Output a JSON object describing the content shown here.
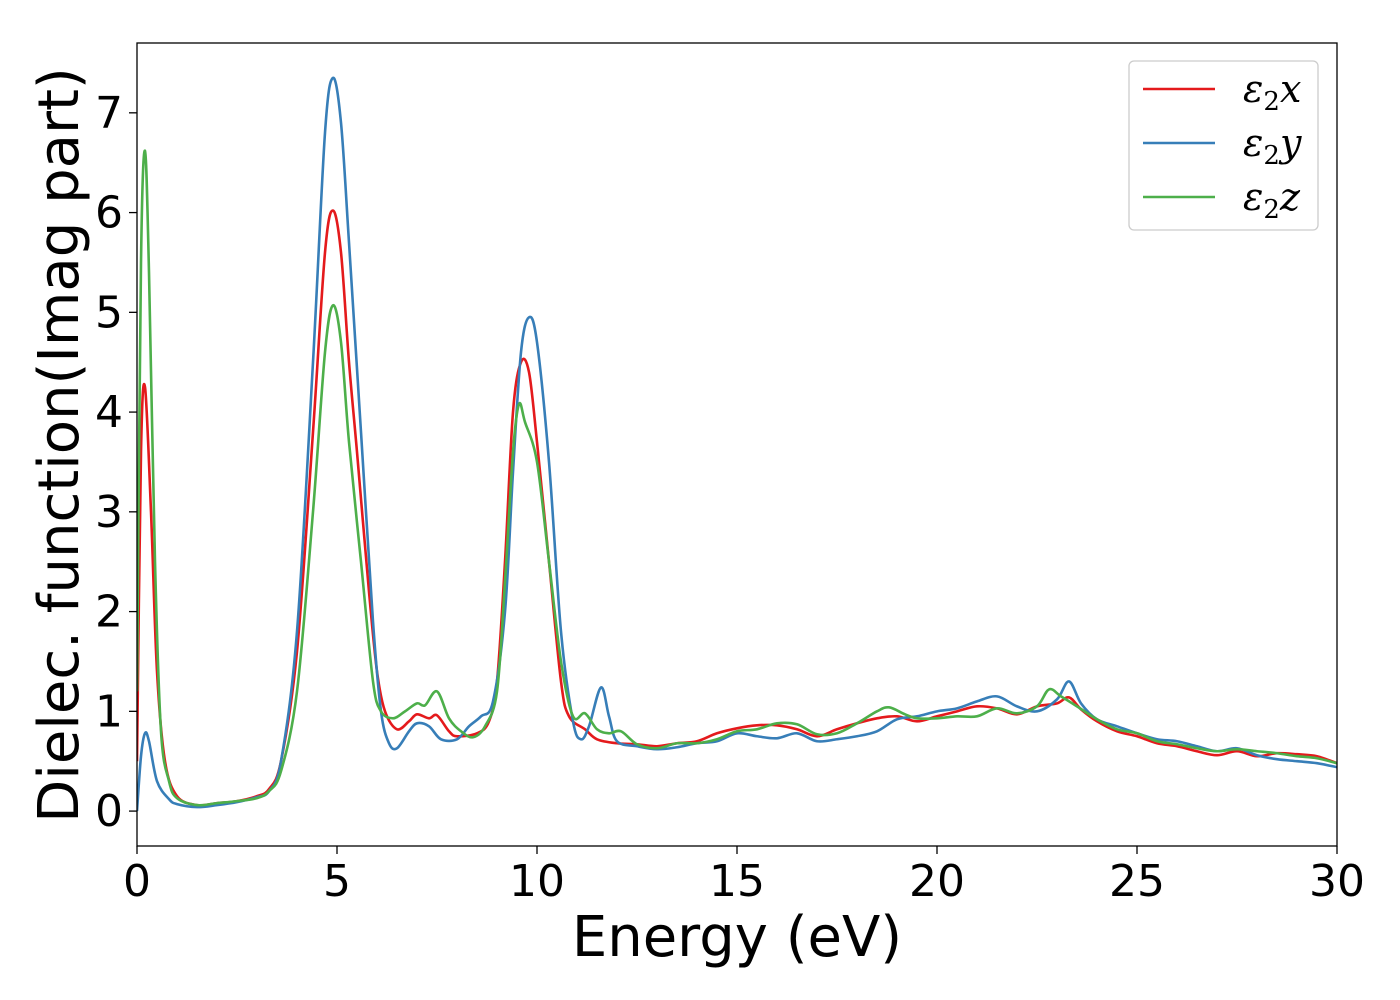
{
  "chart_data": {
    "type": "line",
    "xlabel": "Energy (eV)",
    "ylabel": "Dielec. function(Imag part)",
    "xlim": [
      0,
      30
    ],
    "ylim": [
      -0.35,
      7.7
    ],
    "xticks": [
      0,
      5,
      10,
      15,
      20,
      25,
      30
    ],
    "yticks": [
      0,
      1,
      2,
      3,
      4,
      5,
      6,
      7
    ],
    "legend_position": "top-right",
    "grid": false,
    "series": [
      {
        "name": "ε₂x",
        "legend_base": "ε",
        "legend_sub": "2",
        "legend_var": "x",
        "color": "#e41a1c",
        "points": [
          [
            0,
            0.5
          ],
          [
            0.1,
            3.6
          ],
          [
            0.2,
            4.25
          ],
          [
            0.35,
            3.0
          ],
          [
            0.5,
            1.4
          ],
          [
            0.7,
            0.5
          ],
          [
            1.0,
            0.15
          ],
          [
            1.5,
            0.06
          ],
          [
            2.0,
            0.08
          ],
          [
            2.5,
            0.1
          ],
          [
            3.0,
            0.15
          ],
          [
            3.3,
            0.22
          ],
          [
            3.6,
            0.5
          ],
          [
            4.0,
            1.6
          ],
          [
            4.4,
            3.8
          ],
          [
            4.7,
            5.6
          ],
          [
            4.9,
            6.02
          ],
          [
            5.1,
            5.6
          ],
          [
            5.3,
            4.5
          ],
          [
            5.5,
            3.6
          ],
          [
            5.8,
            2.2
          ],
          [
            6.0,
            1.4
          ],
          [
            6.2,
            1.0
          ],
          [
            6.5,
            0.82
          ],
          [
            6.8,
            0.9
          ],
          [
            7.0,
            0.97
          ],
          [
            7.3,
            0.93
          ],
          [
            7.5,
            0.96
          ],
          [
            7.8,
            0.8
          ],
          [
            8.0,
            0.75
          ],
          [
            8.5,
            0.78
          ],
          [
            8.8,
            0.9
          ],
          [
            9.0,
            1.3
          ],
          [
            9.2,
            2.5
          ],
          [
            9.4,
            4.0
          ],
          [
            9.6,
            4.5
          ],
          [
            9.8,
            4.4
          ],
          [
            10.0,
            3.7
          ],
          [
            10.3,
            2.5
          ],
          [
            10.6,
            1.3
          ],
          [
            10.8,
            0.95
          ],
          [
            11.2,
            0.82
          ],
          [
            11.5,
            0.72
          ],
          [
            12.0,
            0.68
          ],
          [
            12.5,
            0.67
          ],
          [
            13.0,
            0.65
          ],
          [
            13.5,
            0.68
          ],
          [
            14.0,
            0.7
          ],
          [
            14.5,
            0.78
          ],
          [
            15.0,
            0.83
          ],
          [
            15.5,
            0.86
          ],
          [
            16.0,
            0.86
          ],
          [
            16.5,
            0.82
          ],
          [
            17.0,
            0.75
          ],
          [
            17.5,
            0.82
          ],
          [
            18.0,
            0.88
          ],
          [
            18.5,
            0.93
          ],
          [
            19.0,
            0.95
          ],
          [
            19.5,
            0.9
          ],
          [
            20.0,
            0.95
          ],
          [
            20.5,
            1.0
          ],
          [
            21.0,
            1.05
          ],
          [
            21.5,
            1.03
          ],
          [
            22.0,
            0.97
          ],
          [
            22.5,
            1.05
          ],
          [
            23.0,
            1.08
          ],
          [
            23.3,
            1.14
          ],
          [
            23.6,
            1.02
          ],
          [
            24.0,
            0.9
          ],
          [
            24.5,
            0.8
          ],
          [
            25.0,
            0.75
          ],
          [
            25.5,
            0.68
          ],
          [
            26.0,
            0.65
          ],
          [
            26.5,
            0.6
          ],
          [
            27.0,
            0.56
          ],
          [
            27.5,
            0.6
          ],
          [
            28.0,
            0.55
          ],
          [
            28.5,
            0.58
          ],
          [
            29.0,
            0.57
          ],
          [
            29.5,
            0.55
          ],
          [
            30.0,
            0.48
          ]
        ]
      },
      {
        "name": "ε₂y",
        "legend_base": "ε",
        "legend_sub": "2",
        "legend_var": "y",
        "color": "#377eb8",
        "points": [
          [
            0,
            0.0
          ],
          [
            0.1,
            0.55
          ],
          [
            0.2,
            0.78
          ],
          [
            0.3,
            0.7
          ],
          [
            0.5,
            0.3
          ],
          [
            0.8,
            0.12
          ],
          [
            1.0,
            0.07
          ],
          [
            1.5,
            0.04
          ],
          [
            2.0,
            0.06
          ],
          [
            2.5,
            0.09
          ],
          [
            3.0,
            0.14
          ],
          [
            3.3,
            0.2
          ],
          [
            3.6,
            0.5
          ],
          [
            4.0,
            1.8
          ],
          [
            4.4,
            4.5
          ],
          [
            4.7,
            6.8
          ],
          [
            4.9,
            7.35
          ],
          [
            5.1,
            6.9
          ],
          [
            5.3,
            5.7
          ],
          [
            5.6,
            3.8
          ],
          [
            5.9,
            1.9
          ],
          [
            6.1,
            1.0
          ],
          [
            6.3,
            0.68
          ],
          [
            6.5,
            0.63
          ],
          [
            6.8,
            0.8
          ],
          [
            7.0,
            0.88
          ],
          [
            7.3,
            0.85
          ],
          [
            7.6,
            0.72
          ],
          [
            8.0,
            0.72
          ],
          [
            8.3,
            0.85
          ],
          [
            8.6,
            0.95
          ],
          [
            8.9,
            1.1
          ],
          [
            9.2,
            2.0
          ],
          [
            9.4,
            3.4
          ],
          [
            9.6,
            4.6
          ],
          [
            9.8,
            4.95
          ],
          [
            10.0,
            4.7
          ],
          [
            10.3,
            3.5
          ],
          [
            10.6,
            1.8
          ],
          [
            10.9,
            0.9
          ],
          [
            11.1,
            0.72
          ],
          [
            11.3,
            0.85
          ],
          [
            11.6,
            1.24
          ],
          [
            11.8,
            0.95
          ],
          [
            12.0,
            0.7
          ],
          [
            12.5,
            0.65
          ],
          [
            13.0,
            0.62
          ],
          [
            13.5,
            0.64
          ],
          [
            14.0,
            0.68
          ],
          [
            14.5,
            0.7
          ],
          [
            15.0,
            0.78
          ],
          [
            15.5,
            0.75
          ],
          [
            16.0,
            0.73
          ],
          [
            16.5,
            0.78
          ],
          [
            17.0,
            0.7
          ],
          [
            17.5,
            0.72
          ],
          [
            18.0,
            0.75
          ],
          [
            18.5,
            0.8
          ],
          [
            19.0,
            0.92
          ],
          [
            19.5,
            0.95
          ],
          [
            20.0,
            1.0
          ],
          [
            20.5,
            1.03
          ],
          [
            21.0,
            1.1
          ],
          [
            21.5,
            1.15
          ],
          [
            22.0,
            1.05
          ],
          [
            22.5,
            1.0
          ],
          [
            23.0,
            1.12
          ],
          [
            23.3,
            1.3
          ],
          [
            23.6,
            1.08
          ],
          [
            24.0,
            0.92
          ],
          [
            24.5,
            0.85
          ],
          [
            25.0,
            0.78
          ],
          [
            25.5,
            0.72
          ],
          [
            26.0,
            0.7
          ],
          [
            26.5,
            0.65
          ],
          [
            27.0,
            0.6
          ],
          [
            27.5,
            0.63
          ],
          [
            28.0,
            0.56
          ],
          [
            28.5,
            0.52
          ],
          [
            29.0,
            0.5
          ],
          [
            29.5,
            0.48
          ],
          [
            30.0,
            0.44
          ]
        ]
      },
      {
        "name": "ε₂z",
        "legend_base": "ε",
        "legend_sub": "2",
        "legend_var": "z",
        "color": "#4daf4a",
        "points": [
          [
            0,
            1.2
          ],
          [
            0.1,
            5.5
          ],
          [
            0.2,
            6.62
          ],
          [
            0.3,
            5.4
          ],
          [
            0.45,
            2.5
          ],
          [
            0.6,
            0.8
          ],
          [
            0.8,
            0.3
          ],
          [
            1.0,
            0.13
          ],
          [
            1.5,
            0.06
          ],
          [
            2.0,
            0.08
          ],
          [
            2.5,
            0.1
          ],
          [
            3.0,
            0.13
          ],
          [
            3.3,
            0.2
          ],
          [
            3.6,
            0.4
          ],
          [
            4.0,
            1.2
          ],
          [
            4.4,
            3.0
          ],
          [
            4.7,
            4.6
          ],
          [
            4.9,
            5.07
          ],
          [
            5.1,
            4.7
          ],
          [
            5.3,
            3.7
          ],
          [
            5.6,
            2.5
          ],
          [
            5.9,
            1.3
          ],
          [
            6.1,
            1.0
          ],
          [
            6.4,
            0.93
          ],
          [
            6.7,
            1.0
          ],
          [
            7.0,
            1.08
          ],
          [
            7.2,
            1.06
          ],
          [
            7.5,
            1.2
          ],
          [
            7.8,
            0.93
          ],
          [
            8.1,
            0.8
          ],
          [
            8.4,
            0.74
          ],
          [
            8.7,
            0.85
          ],
          [
            9.0,
            1.2
          ],
          [
            9.2,
            2.3
          ],
          [
            9.4,
            3.6
          ],
          [
            9.55,
            4.08
          ],
          [
            9.7,
            3.9
          ],
          [
            10.0,
            3.5
          ],
          [
            10.3,
            2.5
          ],
          [
            10.6,
            1.5
          ],
          [
            10.9,
            0.95
          ],
          [
            11.2,
            0.98
          ],
          [
            11.5,
            0.82
          ],
          [
            11.8,
            0.78
          ],
          [
            12.1,
            0.8
          ],
          [
            12.5,
            0.67
          ],
          [
            13.0,
            0.63
          ],
          [
            13.5,
            0.68
          ],
          [
            14.0,
            0.68
          ],
          [
            14.5,
            0.72
          ],
          [
            15.0,
            0.8
          ],
          [
            15.5,
            0.82
          ],
          [
            16.0,
            0.88
          ],
          [
            16.5,
            0.87
          ],
          [
            17.0,
            0.77
          ],
          [
            17.5,
            0.78
          ],
          [
            18.0,
            0.88
          ],
          [
            18.5,
            1.0
          ],
          [
            18.8,
            1.04
          ],
          [
            19.2,
            0.97
          ],
          [
            19.5,
            0.93
          ],
          [
            20.0,
            0.93
          ],
          [
            20.5,
            0.95
          ],
          [
            21.0,
            0.95
          ],
          [
            21.5,
            1.03
          ],
          [
            22.0,
            0.98
          ],
          [
            22.5,
            1.05
          ],
          [
            22.8,
            1.22
          ],
          [
            23.1,
            1.15
          ],
          [
            23.5,
            1.05
          ],
          [
            24.0,
            0.92
          ],
          [
            24.5,
            0.82
          ],
          [
            25.0,
            0.78
          ],
          [
            25.5,
            0.7
          ],
          [
            26.0,
            0.67
          ],
          [
            26.5,
            0.63
          ],
          [
            27.0,
            0.6
          ],
          [
            27.5,
            0.62
          ],
          [
            28.0,
            0.6
          ],
          [
            28.5,
            0.58
          ],
          [
            29.0,
            0.55
          ],
          [
            29.5,
            0.53
          ],
          [
            30.0,
            0.48
          ]
        ]
      }
    ]
  }
}
